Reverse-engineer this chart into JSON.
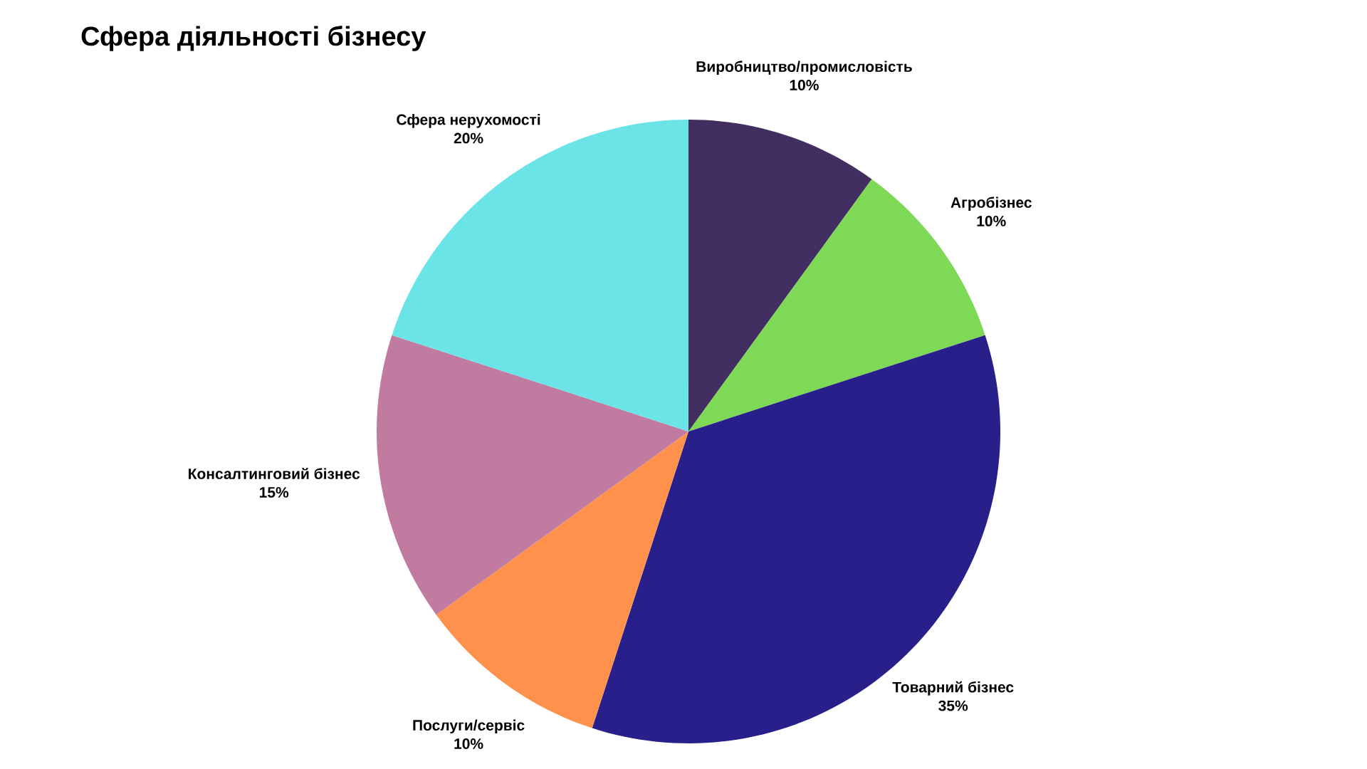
{
  "chart_data": {
    "type": "pie",
    "title": "Сфера діяльності бізнесу",
    "categories": [
      "Виробництво/промисловість",
      "Агробізнес",
      "Товарний бізнес",
      "Послуги/сервіс",
      "Консалтинговий бізнес",
      "Сфера нерухомості"
    ],
    "values": [
      10,
      10,
      35,
      10,
      15,
      20
    ],
    "value_labels": [
      "10%",
      "10%",
      "35%",
      "10%",
      "15%",
      "20%"
    ],
    "colors": [
      "#432e61",
      "#7ed957",
      "#281f8a",
      "#ff914d",
      "#c27ba0",
      "#6ae4e6"
    ]
  }
}
